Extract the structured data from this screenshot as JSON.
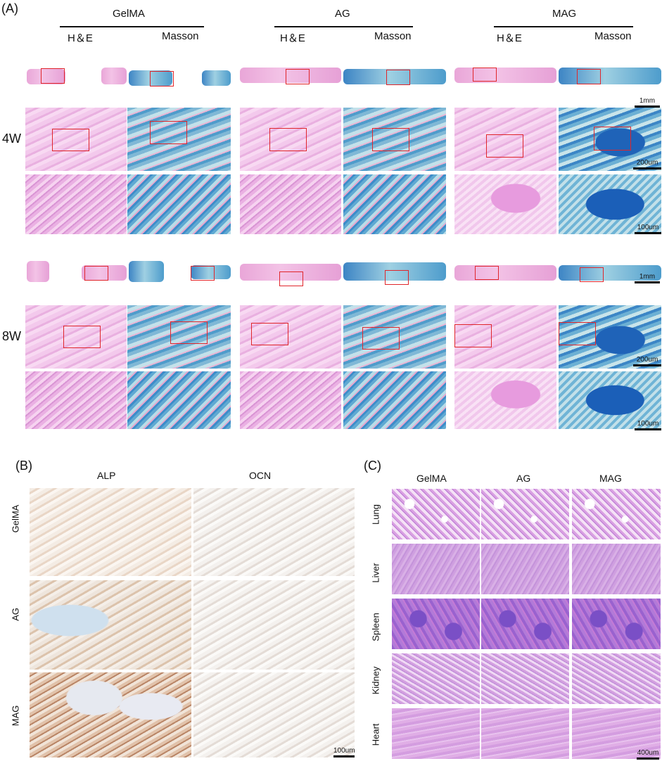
{
  "panel_a": {
    "label": "(A)",
    "groups": [
      "GelMA",
      "AG",
      "MAG"
    ],
    "stains": [
      "H＆E",
      "Masson"
    ],
    "timepoints": [
      "4W",
      "8W"
    ],
    "scales": [
      "1mm",
      "200um",
      "100um"
    ]
  },
  "panel_b": {
    "label": "(B)",
    "columns": [
      "ALP",
      "OCN"
    ],
    "rows": [
      "GelMA",
      "AG",
      "MAG"
    ],
    "scale": "100um"
  },
  "panel_c": {
    "label": "(C)",
    "columns": [
      "GelMA",
      "AG",
      "MAG"
    ],
    "rows": [
      "Lung",
      "Liver",
      "Spleen",
      "Kidney",
      "Heart"
    ],
    "scale": "400um"
  }
}
